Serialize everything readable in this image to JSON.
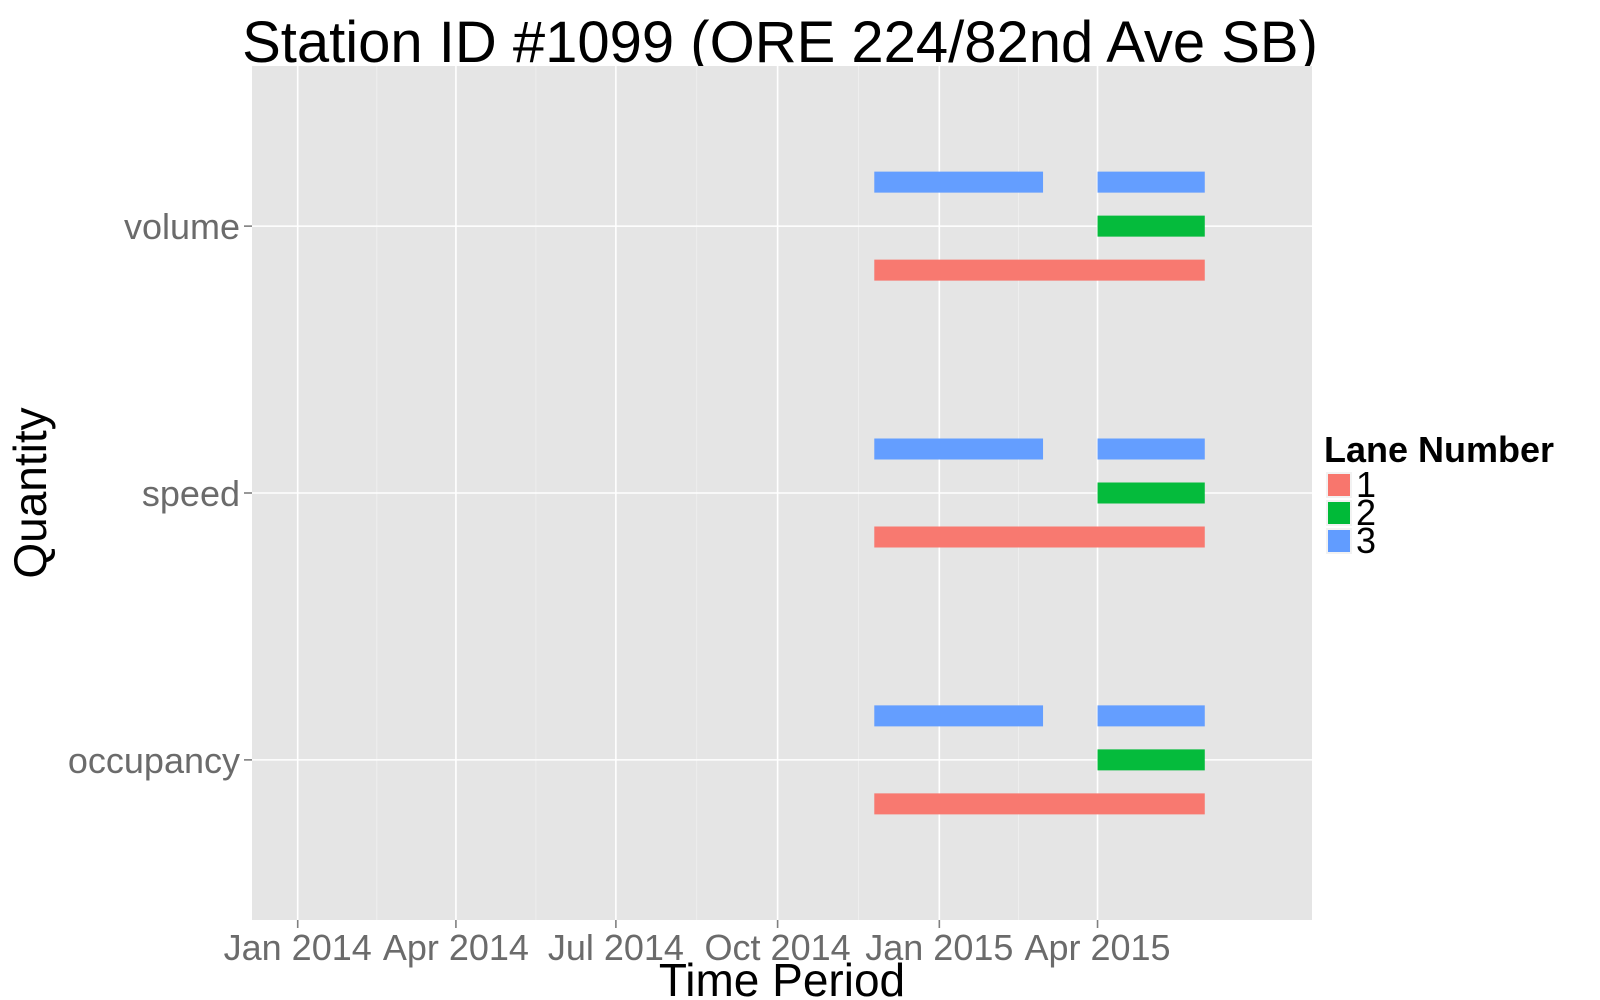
{
  "chart_data": {
    "type": "bar",
    "subtype": "horizontal-timeline-segments",
    "title": "Station ID #1099 (ORE 224/82nd Ave SB)",
    "xlabel": "Time Period",
    "ylabel": "Quantity",
    "x_ticks": [
      "Jan 2014",
      "Apr 2014",
      "Jul 2014",
      "Oct 2014",
      "Jan 2015",
      "Apr 2015"
    ],
    "x_tick_dates": [
      "2014-01-01",
      "2014-04-01",
      "2014-07-01",
      "2014-10-01",
      "2015-01-01",
      "2015-04-01"
    ],
    "xlim": [
      "2013-12-06",
      "2015-08-01"
    ],
    "categories": [
      "occupancy",
      "speed",
      "volume"
    ],
    "grid": true,
    "background": "#e5e5e5",
    "legend": {
      "title": "Lane Number",
      "position": "right",
      "entries": [
        {
          "label": "1",
          "color": "#f8766d"
        },
        {
          "label": "2",
          "color": "#00ba38"
        },
        {
          "label": "3",
          "color": "#619cff"
        }
      ]
    },
    "series": [
      {
        "name": "1",
        "color": "#f8766d",
        "segments": [
          {
            "category": "volume",
            "start": "2014-11-25",
            "end": "2015-06-01"
          },
          {
            "category": "speed",
            "start": "2014-11-25",
            "end": "2015-06-01"
          },
          {
            "category": "occupancy",
            "start": "2014-11-25",
            "end": "2015-06-01"
          }
        ]
      },
      {
        "name": "2",
        "color": "#00ba38",
        "segments": [
          {
            "category": "volume",
            "start": "2015-04-01",
            "end": "2015-06-01"
          },
          {
            "category": "speed",
            "start": "2015-04-01",
            "end": "2015-06-01"
          },
          {
            "category": "occupancy",
            "start": "2015-04-01",
            "end": "2015-06-01"
          }
        ]
      },
      {
        "name": "3",
        "color": "#619cff",
        "segments": [
          {
            "category": "volume",
            "start": "2014-11-25",
            "end": "2015-03-01"
          },
          {
            "category": "volume",
            "start": "2015-04-01",
            "end": "2015-06-01"
          },
          {
            "category": "speed",
            "start": "2014-11-25",
            "end": "2015-03-01"
          },
          {
            "category": "speed",
            "start": "2015-04-01",
            "end": "2015-06-01"
          },
          {
            "category": "occupancy",
            "start": "2014-11-25",
            "end": "2015-03-01"
          },
          {
            "category": "occupancy",
            "start": "2015-04-01",
            "end": "2015-06-01"
          }
        ]
      }
    ]
  }
}
